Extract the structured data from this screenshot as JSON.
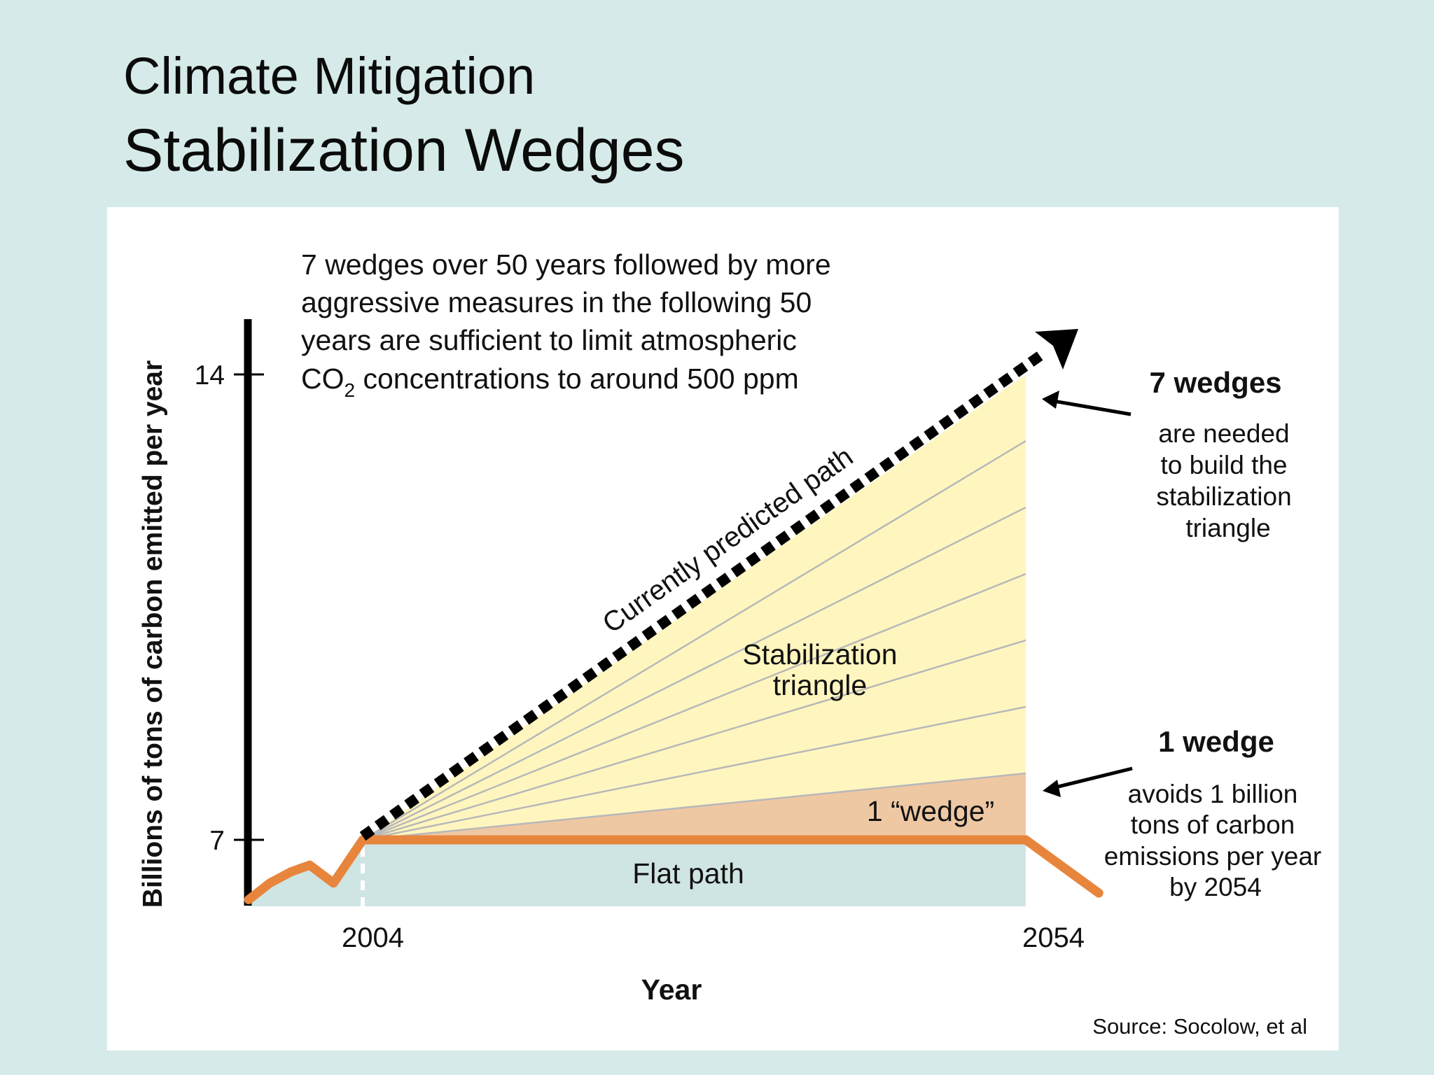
{
  "slide": {
    "title_line1": "Climate Mitigation",
    "title_line2": "Stabilization Wedges"
  },
  "chart_data": {
    "type": "area",
    "title": "",
    "xlabel": "Year",
    "ylabel": "Billions of tons of carbon emitted per year",
    "x_ticks": [
      2004,
      2054
    ],
    "y_ticks": [
      7,
      14
    ],
    "intro_text": [
      "7 wedges over 50 years followed by more",
      "aggressive measures in the following 50",
      "years are sufficient to limit atmospheric"
    ],
    "intro_last_line": {
      "pre": "CO",
      "sub": "2",
      "post": " concentrations to around 500 ppm"
    },
    "series": [
      {
        "name": "Currently predicted path",
        "style": "dashed-arrow",
        "points": [
          [
            2004,
            7
          ],
          [
            2054,
            14
          ]
        ]
      },
      {
        "name": "Flat path",
        "style": "solid",
        "points": [
          [
            1995.4,
            6.1
          ],
          [
            1997,
            6.35
          ],
          [
            1998.6,
            6.52
          ],
          [
            2000,
            6.62
          ],
          [
            2001.8,
            6.35
          ],
          [
            2004,
            7
          ],
          [
            2054,
            7
          ],
          [
            2059.5,
            6.2
          ]
        ]
      }
    ],
    "regions": {
      "stabilization_triangle": {
        "label_lines": [
          "Stabilization",
          "triangle"
        ],
        "color": "#fff6bf"
      },
      "one_wedge": {
        "label": "1 “wedge”",
        "top_at_2054": 8,
        "color": "#eec8a3"
      },
      "flat_region": {
        "color": "#cfe5e4"
      }
    },
    "wedge_lines_y_at_2054": [
      8,
      9,
      10,
      11,
      12,
      13
    ],
    "annotations": {
      "seven_wedges": {
        "heading": "7 wedges",
        "lines": [
          "are needed",
          "to build the",
          "stabilization",
          "triangle"
        ]
      },
      "one_wedge": {
        "heading": "1 wedge",
        "lines": [
          "avoids 1 billion",
          "tons of carbon",
          "emissions per year",
          "by 2054"
        ]
      }
    },
    "source": "Source:  Socolow, et al",
    "colors": {
      "flat_path": "#e8853d",
      "predicted_path": "#000000",
      "triangle_fill": "#fff6bf",
      "wedge_fill": "#eec8a3",
      "base_fill": "#cfe5e4",
      "wedge_lines": "#b8b8b8"
    }
  }
}
